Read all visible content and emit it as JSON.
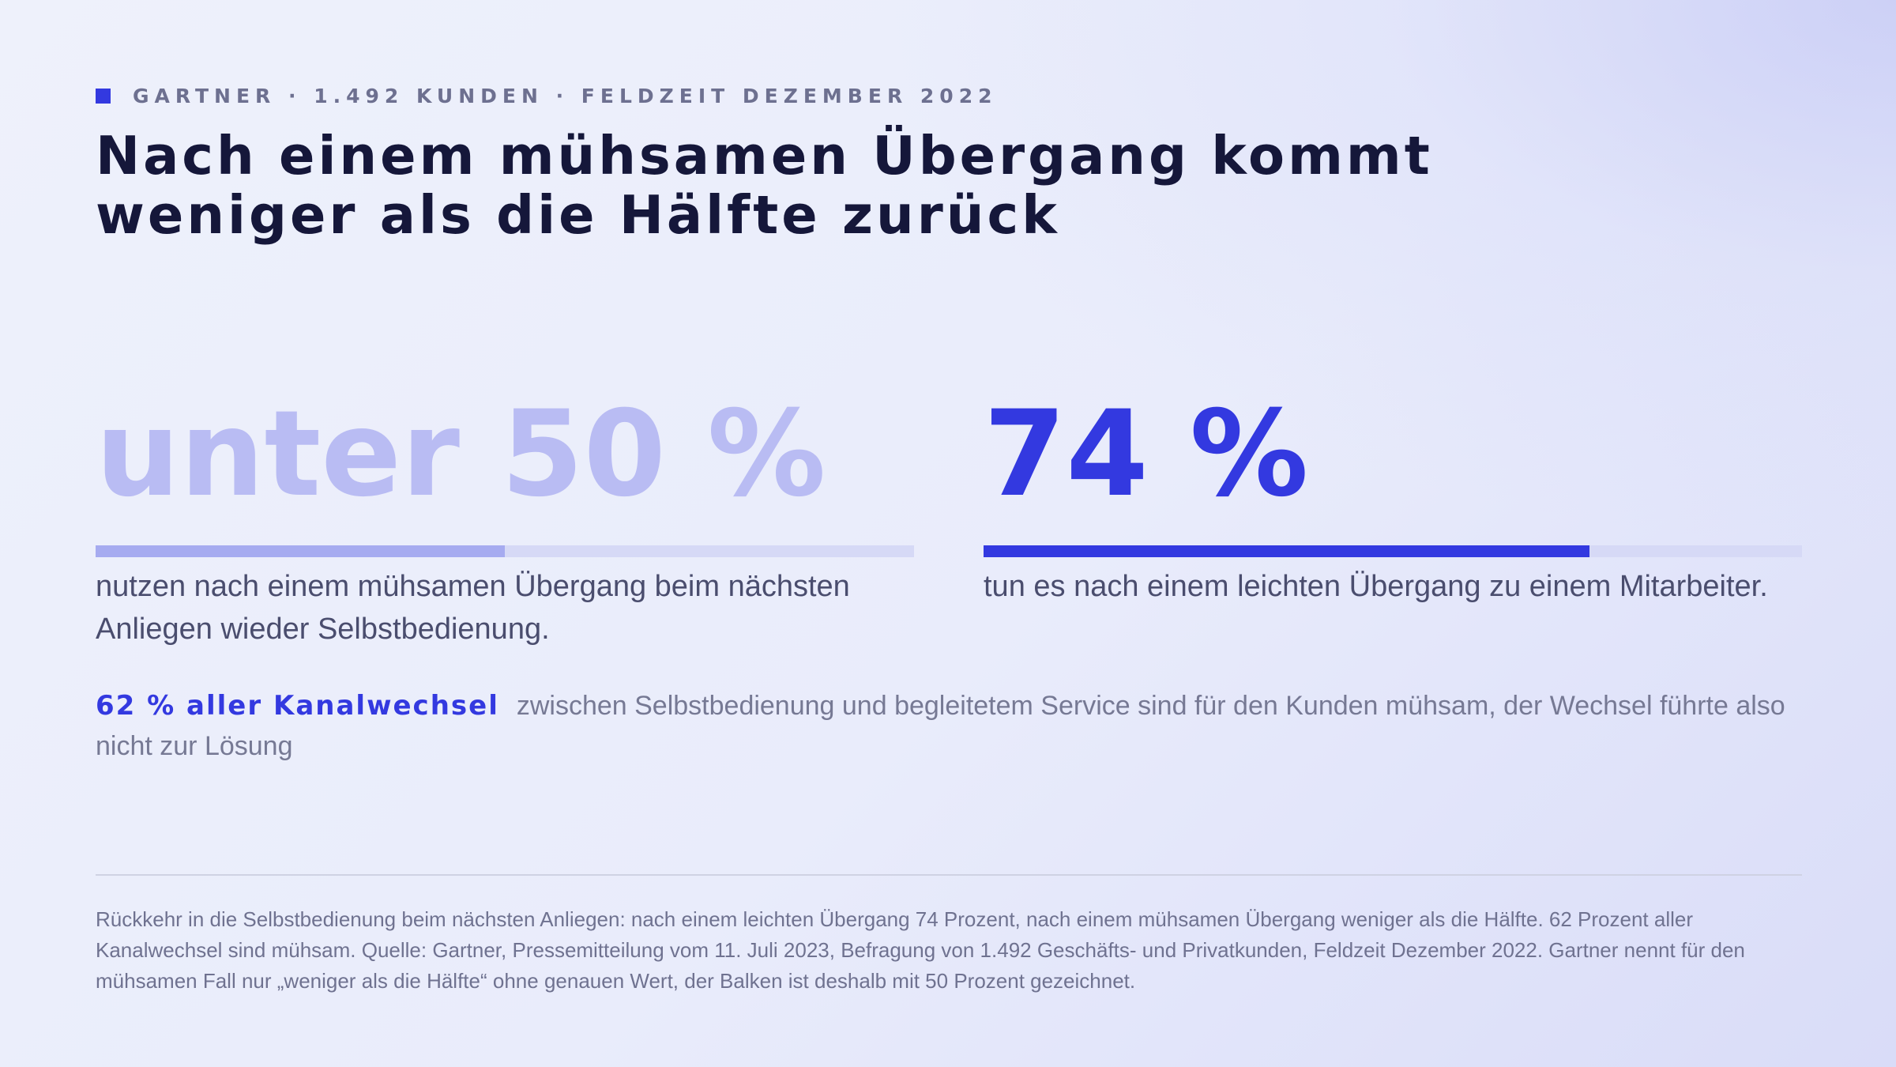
{
  "eyebrow": "GARTNER · 1.492 KUNDEN · FELDZEIT DEZEMBER 2022",
  "headline": {
    "line1": "Nach einem mühsamen Übergang kommt",
    "line2": "weniger als die Hälfte zurück"
  },
  "colors": {
    "accent": "#3339e0",
    "accent_light": "#b9bcf3",
    "bar_light_fill": "#a6abf0",
    "track": "#d6d9f6",
    "eyebrow_square": "#3339e0"
  },
  "chart_data": {
    "type": "bar",
    "orientation": "horizontal",
    "xlim": [
      0,
      100
    ],
    "unit": "%",
    "stats": [
      {
        "value_label": "unter 50 %",
        "value": 50,
        "description": "nutzen nach einem mühsamen Übergang beim nächsten Anliegen wieder Selbstbedienung.",
        "color": "#a6abf0",
        "label_color": "#b9bcf3"
      },
      {
        "value_label": "74 %",
        "value": 74,
        "description": "tun es nach einem leichten Übergang zu einem Mitarbeiter.",
        "color": "#3339e0",
        "label_color": "#3339e0"
      }
    ]
  },
  "note": {
    "emphasis": "62 % aller Kanalwechsel",
    "text": "zwischen Selbstbedienung und begleitetem Service sind für den Kunden mühsam, der Wechsel führte also nicht zur Lösung"
  },
  "footnote": "Rückkehr in die Selbstbedienung beim nächsten Anliegen: nach einem leichten Übergang 74 Prozent, nach einem mühsamen Übergang weniger als die Hälfte. 62 Prozent aller Kanalwechsel sind mühsam. Quelle: Gartner, Pressemitteilung vom 11. Juli 2023, Befragung von 1.492 Geschäfts- und Privatkunden, Feldzeit Dezember 2022. Gartner nennt für den mühsamen Fall nur „weniger als die Hälfte“ ohne genauen Wert, der Balken ist deshalb mit 50 Prozent gezeichnet."
}
